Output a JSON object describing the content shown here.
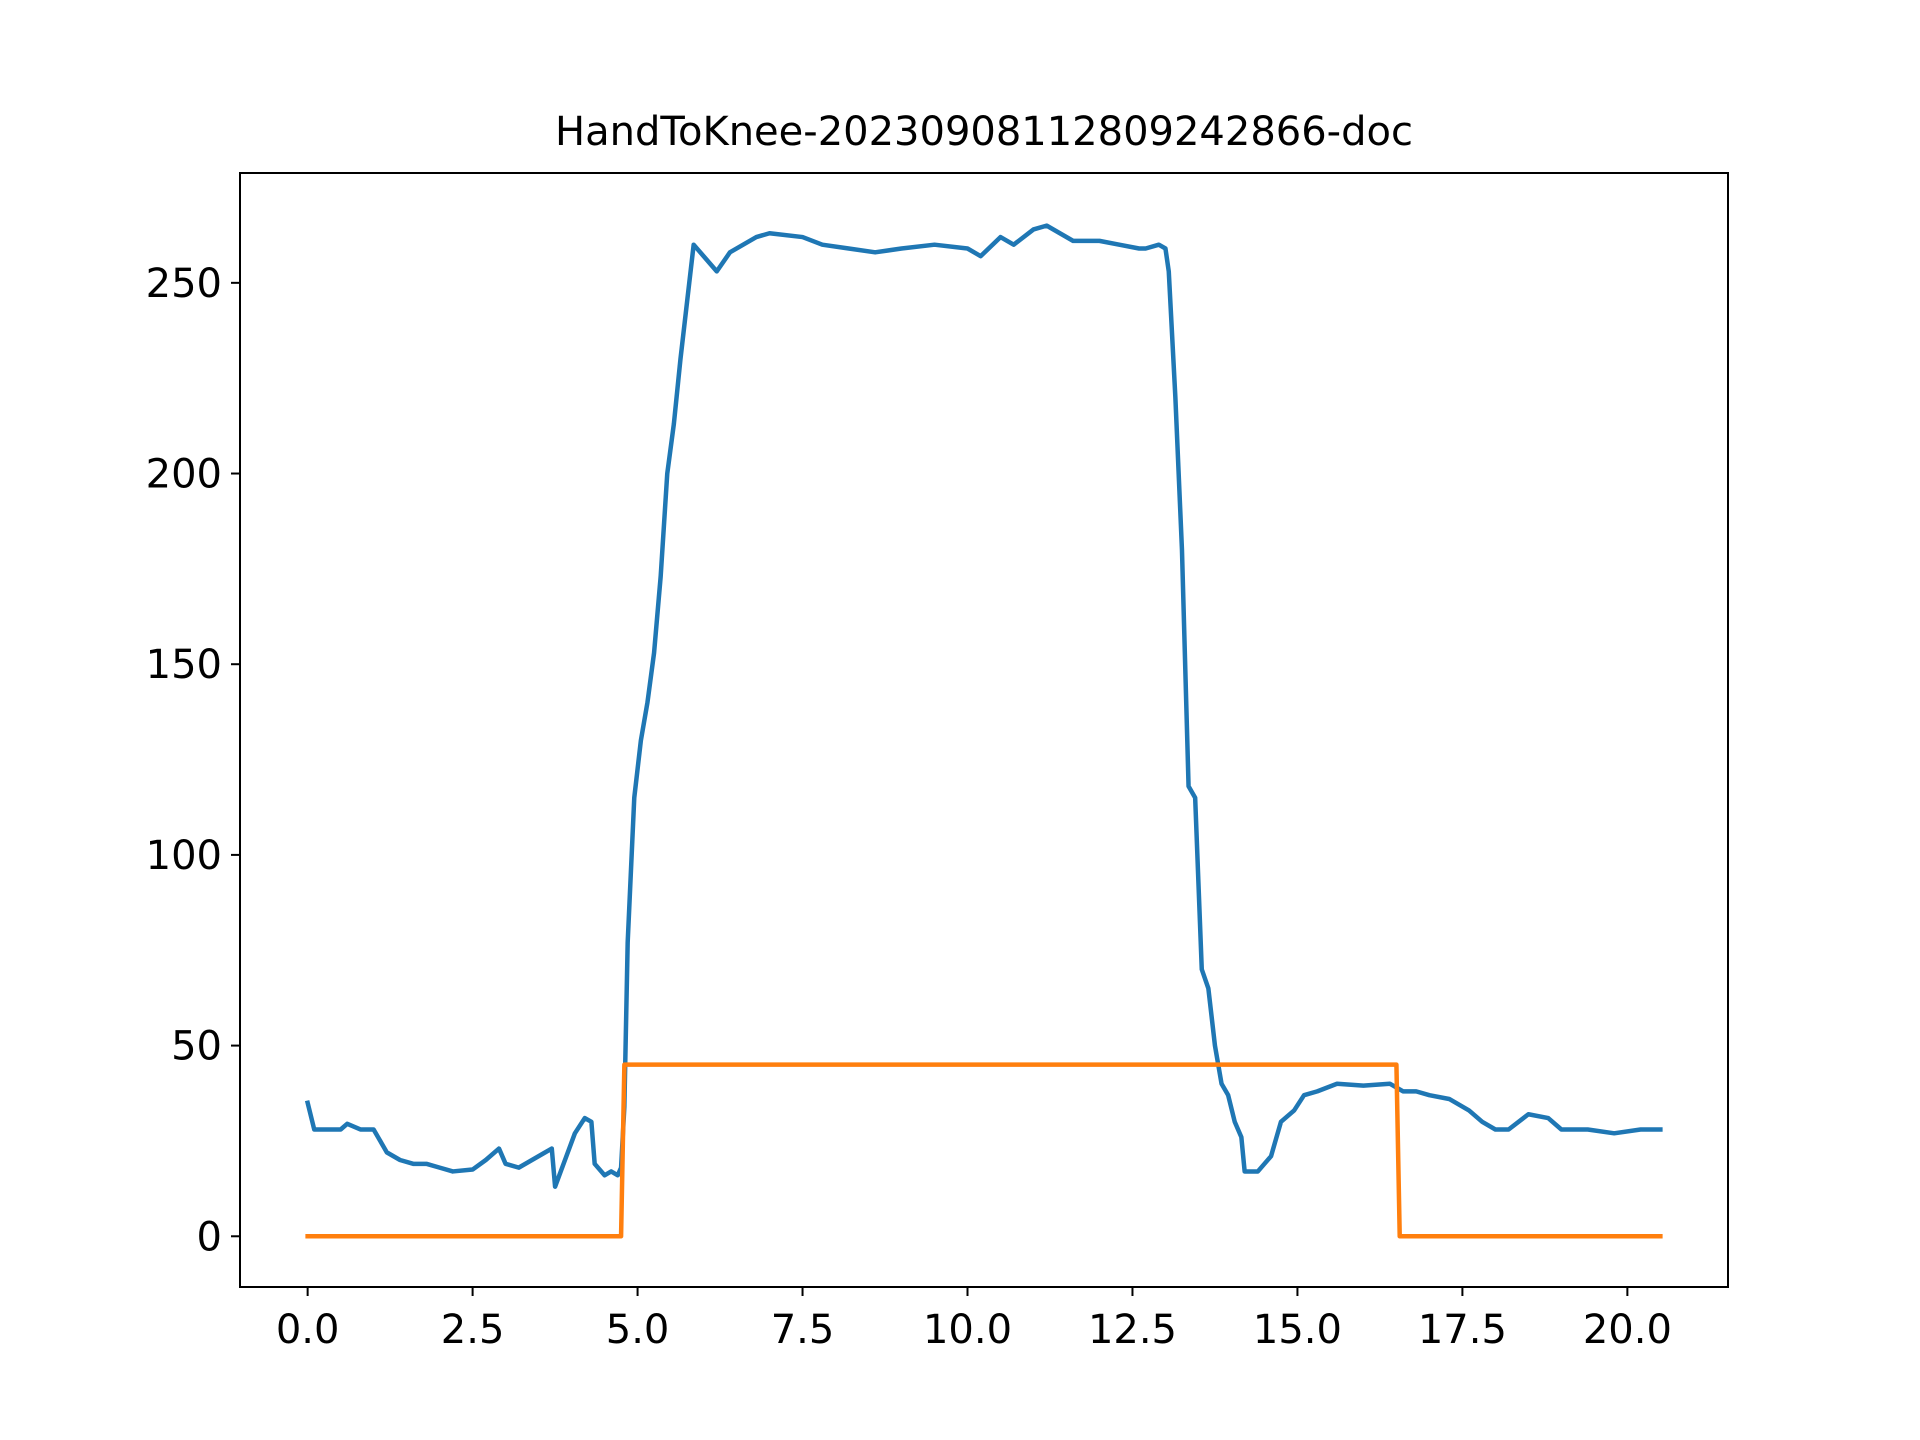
{
  "chart_data": {
    "type": "line",
    "title": "HandToKnee-20230908112809242866-doc",
    "xlim": [
      -1.025,
      21.525
    ],
    "ylim": [
      -13.3,
      278.8
    ],
    "xticks": [
      {
        "value": 0,
        "label": "0.0"
      },
      2.5,
      {
        "value": 5,
        "label": "5.0"
      },
      7.5,
      {
        "value": 10,
        "label": "10.0"
      },
      12.5,
      {
        "value": 15,
        "label": "15.0"
      },
      17.5,
      {
        "value": 20,
        "label": "20.0"
      }
    ],
    "yticks": [
      0,
      50,
      100,
      150,
      200,
      250
    ],
    "series": [
      {
        "color": "#1f77b4",
        "x": [
          0.0,
          0.1,
          0.3,
          0.5,
          0.6,
          0.8,
          1.0,
          1.1,
          1.2,
          1.4,
          1.6,
          1.8,
          2.0,
          2.2,
          2.5,
          2.7,
          2.9,
          3.0,
          3.2,
          3.4,
          3.6,
          3.7,
          3.75,
          3.9,
          4.05,
          4.2,
          4.3,
          4.35,
          4.5,
          4.6,
          4.7,
          4.75,
          4.8,
          4.85,
          4.95,
          5.05,
          5.15,
          5.25,
          5.35,
          5.45,
          5.55,
          5.65,
          5.75,
          5.85,
          6.0,
          6.2,
          6.4,
          6.6,
          6.8,
          7.0,
          7.5,
          7.8,
          8.2,
          8.6,
          9.0,
          9.5,
          10.0,
          10.2,
          10.5,
          10.7,
          11.0,
          11.2,
          11.4,
          11.6,
          12.0,
          12.3,
          12.6,
          12.7,
          12.9,
          13.0,
          13.05,
          13.15,
          13.25,
          13.35,
          13.45,
          13.55,
          13.65,
          13.75,
          13.85,
          13.95,
          14.05,
          14.15,
          14.2,
          14.4,
          14.6,
          14.75,
          14.95,
          15.1,
          15.3,
          15.6,
          16.0,
          16.4,
          16.6,
          16.8,
          17.0,
          17.3,
          17.6,
          17.8,
          18.0,
          18.2,
          18.5,
          18.8,
          19.0,
          19.4,
          19.8,
          20.2,
          20.5
        ],
        "values": [
          35,
          28,
          28,
          28,
          29.5,
          28,
          28,
          25,
          22,
          20,
          19,
          19,
          18,
          17,
          17.5,
          20,
          23,
          19,
          18,
          20,
          22,
          23,
          13,
          20,
          27,
          31,
          30,
          19,
          16,
          17,
          16,
          18,
          34,
          77,
          115,
          130,
          140,
          153,
          173,
          200,
          213,
          230,
          245,
          260,
          257,
          253,
          258,
          260,
          262,
          263,
          262,
          260,
          259,
          258,
          259,
          260,
          259,
          257,
          262,
          260,
          264,
          265,
          263,
          261,
          261,
          260,
          259,
          259,
          260,
          259,
          253,
          220,
          180,
          118,
          115,
          70,
          65,
          50,
          40,
          37,
          30,
          26,
          17,
          17,
          21,
          30,
          33,
          37,
          38,
          40,
          39.5,
          40,
          38,
          38,
          37,
          36,
          33,
          30,
          28,
          28,
          32,
          31,
          28,
          28,
          27,
          28,
          28
        ]
      },
      {
        "color": "#ff7f0e",
        "x": [
          0.0,
          4.75,
          4.8,
          16.5,
          16.55,
          20.5
        ],
        "values": [
          0,
          0,
          45,
          45,
          0,
          0
        ]
      }
    ]
  }
}
